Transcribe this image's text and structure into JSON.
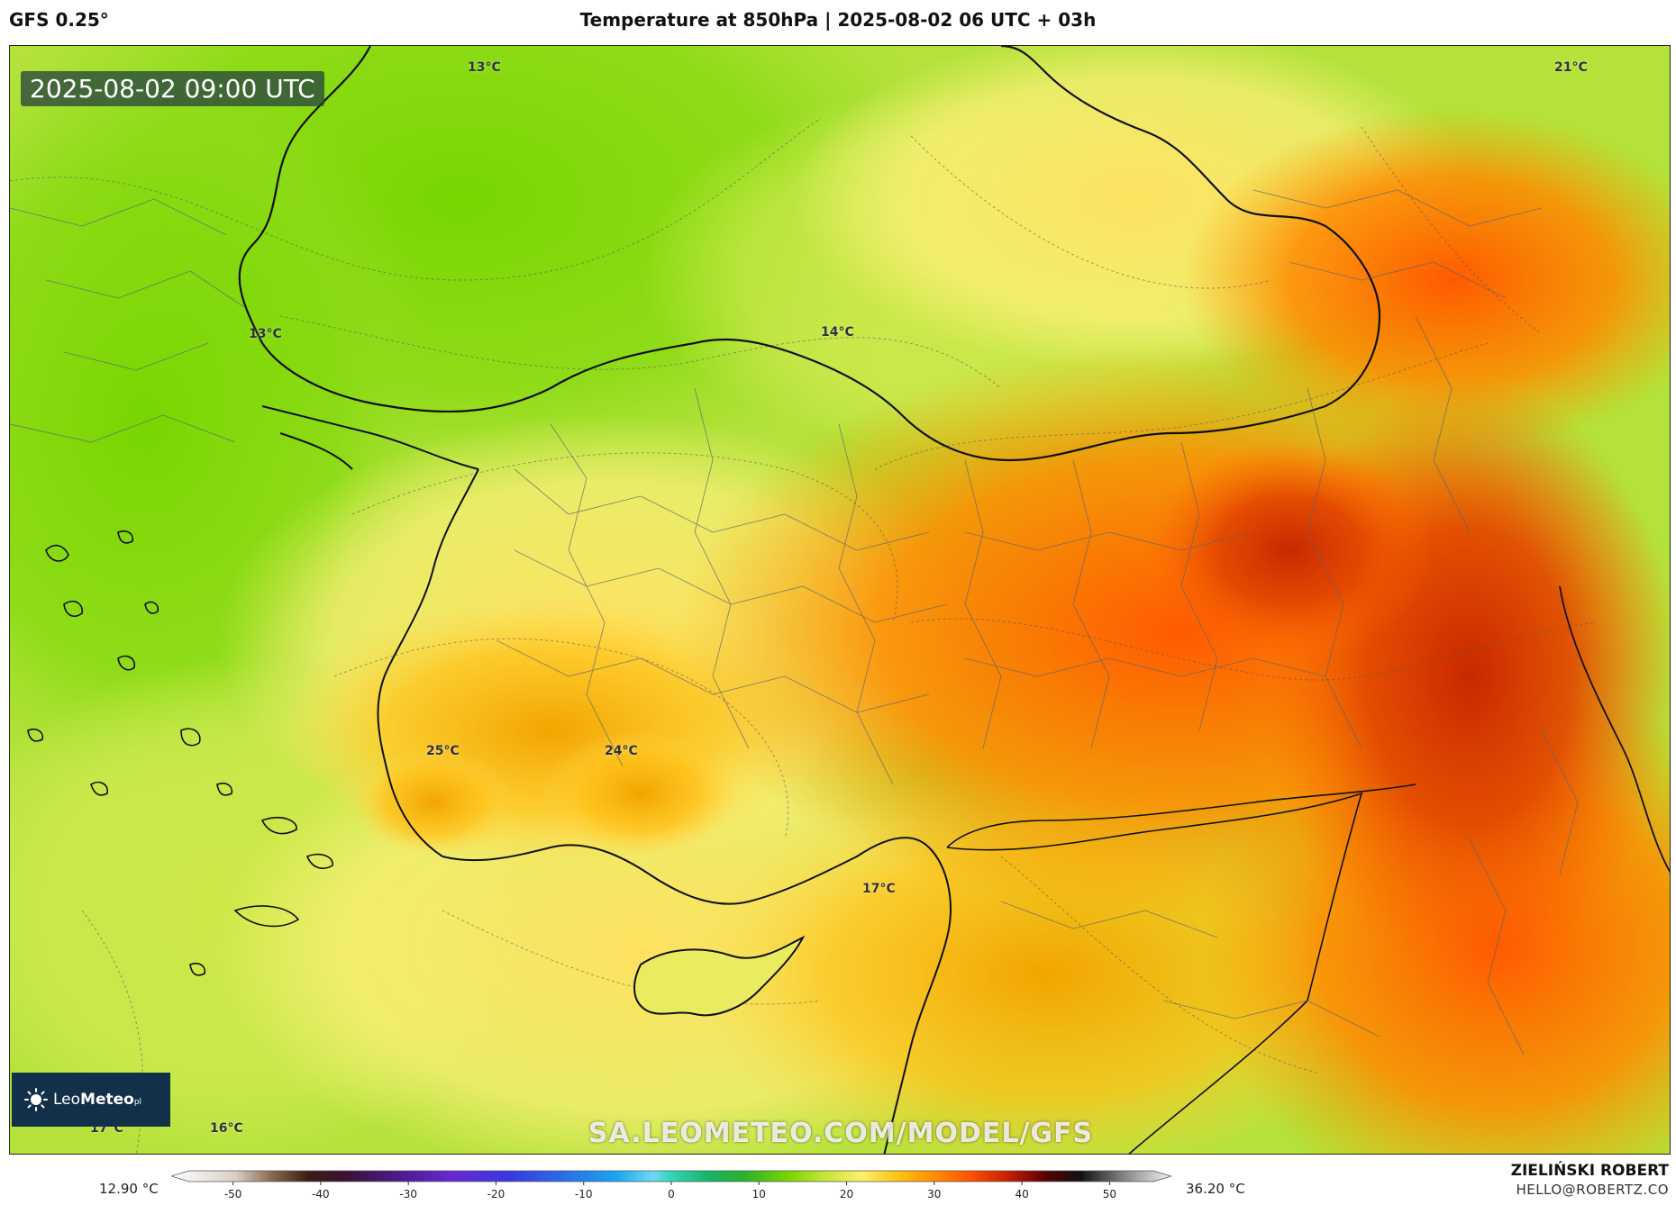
{
  "header": {
    "model": "GFS 0.25°",
    "title": "Temperature at 850hPa | 2025-08-02 06 UTC + 03h"
  },
  "map": {
    "timestamp": "2025-08-02 09:00 UTC",
    "labels": [
      {
        "text": "13°C"
      },
      {
        "text": "21°C"
      },
      {
        "text": "13°C"
      },
      {
        "text": "14°C"
      },
      {
        "text": "25°C"
      },
      {
        "text": "24°C"
      },
      {
        "text": "17°C"
      },
      {
        "text": "17°C"
      },
      {
        "text": "16°C"
      }
    ],
    "watermark": "SA.LEOMETEO.COM/MODEL/GFS",
    "logo": {
      "name": "LeoMeteo",
      "leo": "Leo",
      "meteo": "Meteo",
      "suffix": "pl"
    }
  },
  "colorbar": {
    "min_label": "12.90 °C",
    "max_label": "36.20 °C",
    "ticks": [
      "-50",
      "-40",
      "-30",
      "-20",
      "-10",
      "0",
      "10",
      "20",
      "30",
      "40",
      "50"
    ],
    "range": [
      -55,
      55
    ],
    "stops": [
      {
        "v": -55,
        "c": "#ffffff"
      },
      {
        "v": -48,
        "c": "#d9d1c7"
      },
      {
        "v": -44,
        "c": "#8a6a52"
      },
      {
        "v": -40,
        "c": "#3a1f12"
      },
      {
        "v": -36,
        "c": "#3b0f33"
      },
      {
        "v": -30,
        "c": "#4a1a8a"
      },
      {
        "v": -24,
        "c": "#6a28d4"
      },
      {
        "v": -18,
        "c": "#3838e0"
      },
      {
        "v": -12,
        "c": "#2b6be8"
      },
      {
        "v": -6,
        "c": "#1aa6ee"
      },
      {
        "v": -2,
        "c": "#6fd8f4"
      },
      {
        "v": 0,
        "c": "#31d6b4"
      },
      {
        "v": 4,
        "c": "#16b46a"
      },
      {
        "v": 8,
        "c": "#2ab22a"
      },
      {
        "v": 13,
        "c": "#7ad600"
      },
      {
        "v": 17,
        "c": "#c6e63a"
      },
      {
        "v": 21,
        "c": "#fff06a"
      },
      {
        "v": 25,
        "c": "#ffc20e"
      },
      {
        "v": 29,
        "c": "#ff8c00"
      },
      {
        "v": 33,
        "c": "#ff5000"
      },
      {
        "v": 37,
        "c": "#c81e00"
      },
      {
        "v": 41,
        "c": "#5a0000"
      },
      {
        "v": 45,
        "c": "#111111"
      },
      {
        "v": 50,
        "c": "#8a8a8a"
      },
      {
        "v": 55,
        "c": "#f2f2f2"
      }
    ]
  },
  "author": {
    "name": "ZIELIŃSKI ROBERT",
    "email": "HELLO@ROBERTZ.CO"
  }
}
